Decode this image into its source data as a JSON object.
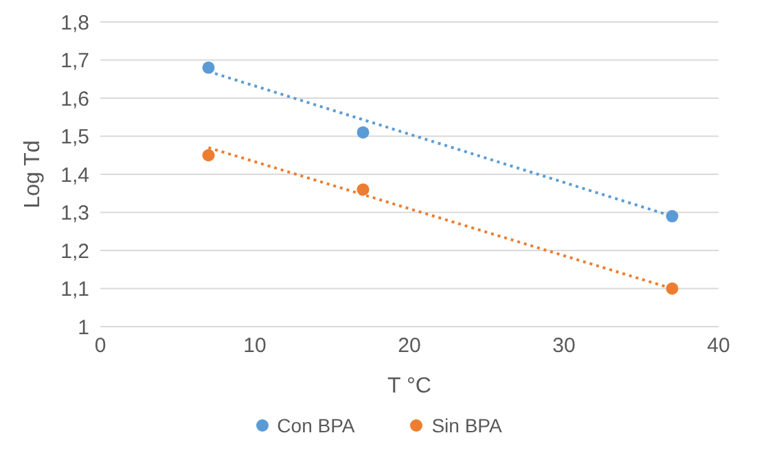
{
  "chart_data": {
    "type": "scatter",
    "xlabel": "T °C",
    "ylabel": "Log Td",
    "xlim": [
      0,
      40
    ],
    "xticks": [
      0,
      10,
      20,
      30,
      40
    ],
    "ylim": [
      1,
      1.8
    ],
    "yticks": [
      1,
      {
        "value": 1.1,
        "label": "1,1"
      },
      {
        "value": 1.2,
        "label": "1,2"
      },
      {
        "value": 1.3,
        "label": "1,3"
      },
      {
        "value": 1.4,
        "label": "1,4"
      },
      {
        "value": 1.5,
        "label": "1,5"
      },
      {
        "value": 1.6,
        "label": "1,6"
      },
      {
        "value": 1.7,
        "label": "1,7"
      },
      {
        "value": 1.8,
        "label": "1,8"
      }
    ],
    "grid": "y",
    "legend": "bottom",
    "marker": "circle",
    "series": [
      {
        "name": "Con BPA",
        "color": "#5b9bd5",
        "x": [
          7,
          17,
          37
        ],
        "values": [
          1.68,
          1.51,
          1.29
        ]
      },
      {
        "name": "Sin BPA",
        "color": "#ed7d31",
        "x": [
          7,
          17,
          37
        ],
        "values": [
          1.45,
          1.36,
          1.1
        ]
      },
      {
        "type": "line",
        "color": "#5b9bd5",
        "line_style": "dotted",
        "marker": "none",
        "x": [
          7,
          37
        ],
        "values": [
          1.67,
          1.29
        ]
      },
      {
        "type": "line",
        "color": "#ed7d31",
        "line_style": "dotted",
        "marker": "none",
        "x": [
          7,
          37
        ],
        "values": [
          1.47,
          1.1
        ]
      }
    ]
  }
}
